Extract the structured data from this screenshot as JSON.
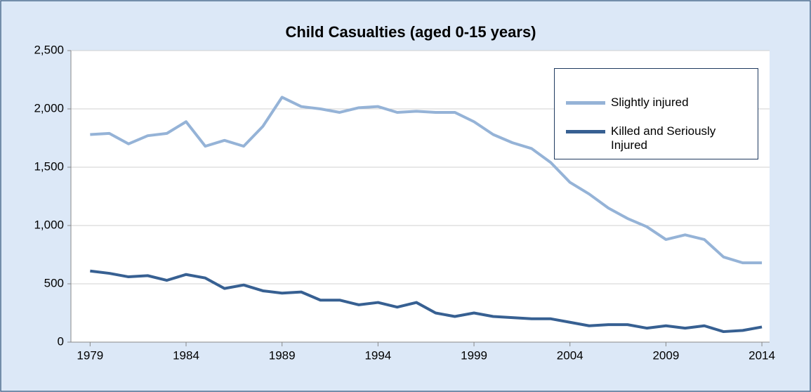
{
  "chart_data": {
    "type": "line",
    "title": "Child Casualties (aged 0-15 years)",
    "x": [
      1979,
      1980,
      1981,
      1982,
      1983,
      1984,
      1985,
      1986,
      1987,
      1988,
      1989,
      1990,
      1991,
      1992,
      1993,
      1994,
      1995,
      1996,
      1997,
      1998,
      1999,
      2000,
      2001,
      2002,
      2003,
      2004,
      2005,
      2006,
      2007,
      2008,
      2009,
      2010,
      2011,
      2012,
      2013,
      2014
    ],
    "series": [
      {
        "name": "Slightly injured",
        "color": "#95b3d7",
        "values": [
          1780,
          1790,
          1700,
          1770,
          1790,
          1890,
          1680,
          1730,
          1680,
          1850,
          2100,
          2020,
          2000,
          1970,
          2010,
          2020,
          1970,
          1980,
          1970,
          1970,
          1890,
          1780,
          1710,
          1660,
          1540,
          1370,
          1270,
          1150,
          1060,
          990,
          880,
          920,
          880,
          730,
          680,
          680
        ]
      },
      {
        "name": "Killed and Seriously Injured",
        "color": "#376092",
        "values": [
          610,
          590,
          560,
          570,
          530,
          580,
          550,
          460,
          490,
          440,
          420,
          430,
          360,
          360,
          320,
          340,
          300,
          340,
          250,
          220,
          250,
          220,
          210,
          200,
          200,
          170,
          140,
          150,
          150,
          120,
          140,
          120,
          140,
          90,
          100,
          130
        ]
      }
    ],
    "xlim": [
      1978,
      2014.4
    ],
    "xticks": [
      1979,
      1984,
      1989,
      1994,
      1999,
      2004,
      2009,
      2014
    ],
    "ylim": [
      0,
      2500
    ],
    "yticks": [
      0,
      500,
      {
        "value": 1000,
        "label": "1,000"
      },
      {
        "value": 1500,
        "label": "1,500"
      },
      {
        "value": 2000,
        "label": "2,000"
      },
      {
        "value": 2500,
        "label": "2,500"
      }
    ],
    "grid": true,
    "legend": "upper right"
  }
}
